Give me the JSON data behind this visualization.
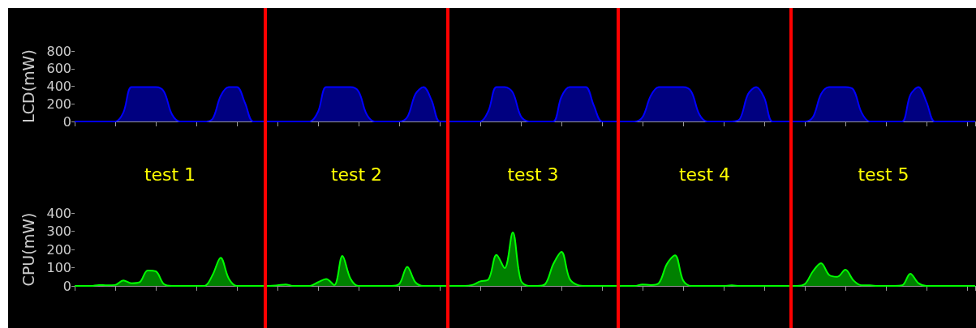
{
  "chart_data": [
    {
      "type": "area",
      "ylabel": "LCD(mW)",
      "categories": [
        null,
        null,
        null,
        null,
        null,
        null,
        null,
        null,
        null,
        null,
        null,
        null,
        null,
        null,
        null,
        null,
        null,
        null,
        null,
        null,
        null,
        null,
        null,
        null,
        null,
        null,
        null,
        null,
        null,
        null,
        null,
        null,
        null,
        null,
        null,
        null,
        null,
        null,
        null,
        null,
        null,
        null,
        null,
        null,
        null,
        null,
        null,
        null,
        null,
        null,
        null,
        null,
        null,
        null,
        null,
        null,
        null,
        null,
        null,
        null,
        null,
        null,
        null,
        null,
        null,
        null,
        null,
        null,
        null,
        null,
        null,
        null,
        null,
        null,
        null,
        null,
        null,
        null,
        null,
        null,
        null,
        null,
        null,
        null,
        null,
        null,
        null,
        null,
        null,
        null,
        null,
        null,
        null,
        null,
        null,
        null,
        null,
        null,
        null,
        null,
        null,
        null,
        null,
        null,
        null,
        null,
        null,
        null,
        null,
        null,
        null,
        null
      ],
      "series": [
        {
          "color": "#0000ff",
          "values": [
            0,
            0,
            0,
            0,
            0,
            0,
            100,
            390,
            390,
            390,
            390,
            340,
            80,
            0,
            0,
            0,
            0,
            30,
            290,
            390,
            390,
            210,
            0,
            0,
            0,
            0,
            0,
            0,
            0,
            0,
            110,
            390,
            390,
            390,
            390,
            340,
            80,
            0,
            0,
            0,
            0,
            50,
            310,
            390,
            240,
            0,
            0,
            0,
            0,
            0,
            0,
            120,
            390,
            390,
            330,
            60,
            0,
            0,
            0,
            0,
            280,
            390,
            390,
            390,
            180,
            0,
            0,
            0,
            0,
            0,
            50,
            290,
            390,
            390,
            390,
            390,
            340,
            80,
            0,
            0,
            0,
            0,
            30,
            310,
            390,
            270,
            0,
            0,
            0,
            0,
            0,
            50,
            310,
            390,
            390,
            390,
            360,
            100,
            0,
            0,
            0,
            0,
            0,
            300,
            390,
            220,
            0,
            0,
            0,
            0,
            0,
            0
          ]
        }
      ],
      "ylim": [
        0,
        800
      ],
      "yticks": [
        0,
        200,
        400,
        600,
        800
      ],
      "tick_labels": "y"
    },
    {
      "type": "area",
      "ylabel": "CPU(mW)",
      "categories": [
        null,
        null,
        null,
        null,
        null,
        null,
        null,
        null,
        null,
        null,
        null,
        null,
        null,
        null,
        null,
        null,
        null,
        null,
        null,
        null,
        null,
        null,
        null,
        null,
        null,
        null,
        null,
        null,
        null,
        null,
        null,
        null,
        null,
        null,
        null,
        null,
        null,
        null,
        null,
        null,
        null,
        null,
        null,
        null,
        null,
        null,
        null,
        null,
        null,
        null,
        null,
        null,
        null,
        null,
        null,
        null,
        null,
        null,
        null,
        null,
        null,
        null,
        null,
        null,
        null,
        null,
        null,
        null,
        null,
        null,
        null,
        null,
        null,
        null,
        null,
        null,
        null,
        null,
        null,
        null,
        null,
        null,
        null,
        null,
        null,
        null,
        null,
        null,
        null,
        null,
        null,
        null,
        null,
        null,
        null,
        null,
        null,
        null,
        null,
        null,
        null,
        null,
        null,
        null,
        null,
        null,
        null,
        null,
        null,
        null,
        null,
        null
      ],
      "series": [
        {
          "color": "#00ff00",
          "values": [
            0,
            0,
            0,
            5,
            3,
            5,
            30,
            15,
            20,
            85,
            80,
            10,
            0,
            0,
            0,
            0,
            0,
            60,
            155,
            40,
            0,
            0,
            0,
            0,
            0,
            3,
            8,
            0,
            0,
            0,
            20,
            38,
            5,
            165,
            40,
            0,
            0,
            0,
            0,
            0,
            10,
            105,
            20,
            0,
            0,
            0,
            0,
            0,
            0,
            5,
            25,
            35,
            170,
            98,
            293,
            30,
            0,
            0,
            10,
            120,
            187,
            40,
            5,
            0,
            0,
            0,
            0,
            0,
            0,
            0,
            8,
            5,
            15,
            120,
            168,
            30,
            0,
            0,
            0,
            0,
            0,
            3,
            0,
            0,
            0,
            0,
            0,
            0,
            0,
            0,
            10,
            80,
            124,
            60,
            50,
            89,
            30,
            3,
            3,
            0,
            0,
            0,
            3,
            67,
            15,
            0,
            0,
            0,
            0,
            0,
            0,
            0
          ]
        }
      ],
      "ylim": [
        0,
        400
      ],
      "yticks": [
        0,
        100,
        200,
        300,
        400
      ],
      "tick_labels": "y",
      "annotations": [
        "test 1",
        "test 2",
        "test 3",
        "test 4",
        "test 5"
      ]
    }
  ]
}
